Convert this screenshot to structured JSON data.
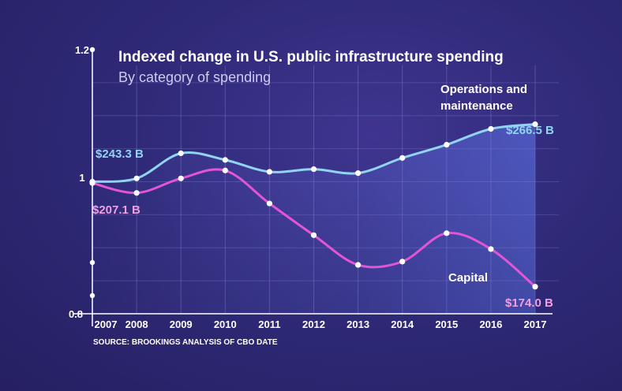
{
  "chart_data": {
    "type": "line",
    "title": "Indexed change in U.S. public infrastructure spending",
    "subtitle": "By category of spending",
    "source": "SOURCE: BROOKINGS ANALYSIS OF CBO DATE",
    "x": [
      "2007",
      "2008",
      "2009",
      "2010",
      "2011",
      "2012",
      "2013",
      "2014",
      "2015",
      "2016",
      "2017"
    ],
    "ylim": [
      0.8,
      1.2
    ],
    "yticks": [
      "1.2",
      "1",
      "0.8"
    ],
    "ytick_values": [
      1.2,
      1.0,
      0.8
    ],
    "grid": true,
    "series": [
      {
        "name": "Operations and maintenance",
        "color": "#8fd4f0",
        "values": [
          1.0,
          1.005,
          1.043,
          1.033,
          1.015,
          1.019,
          1.013,
          1.036,
          1.056,
          1.08,
          1.087
        ],
        "start_label": "$243.3 B",
        "end_label": "$266.5 B"
      },
      {
        "name": "Capital",
        "color": "#e455d6",
        "values": [
          0.998,
          0.983,
          1.005,
          1.017,
          0.967,
          0.919,
          0.874,
          0.879,
          0.922,
          0.898,
          0.841
        ],
        "start_label": "$207.1 B",
        "end_label": "$174.0 B"
      }
    ]
  }
}
